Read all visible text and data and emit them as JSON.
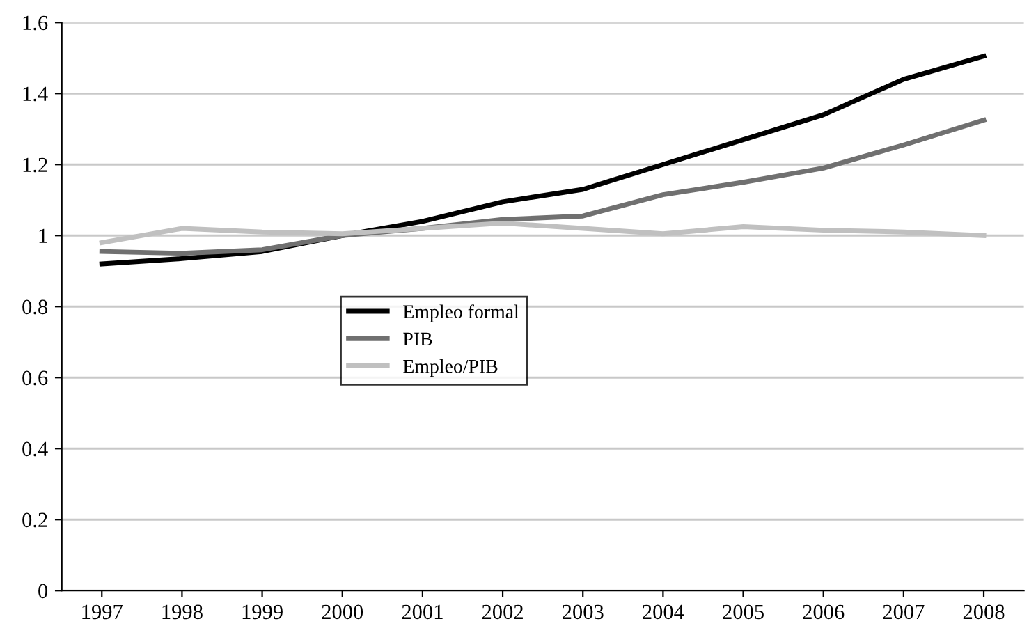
{
  "chart_data": {
    "type": "line",
    "categories": [
      "1997",
      "1998",
      "1999",
      "2000",
      "2001",
      "2002",
      "2003",
      "2004",
      "2005",
      "2006",
      "2007",
      "2008"
    ],
    "series": [
      {
        "name": "Empleo formal",
        "color": "#000000",
        "values": [
          0.92,
          0.935,
          0.955,
          1.0,
          1.04,
          1.095,
          1.13,
          1.2,
          1.27,
          1.34,
          1.44,
          1.505
        ]
      },
      {
        "name": "PIB",
        "color": "#707070",
        "values": [
          0.955,
          0.95,
          0.96,
          1.0,
          1.02,
          1.045,
          1.055,
          1.115,
          1.15,
          1.19,
          1.255,
          1.325
        ]
      },
      {
        "name": "Empleo/PIB",
        "color": "#c0c0c0",
        "values": [
          0.98,
          1.02,
          1.01,
          1.005,
          1.02,
          1.035,
          1.02,
          1.005,
          1.025,
          1.015,
          1.01,
          1.0
        ]
      }
    ],
    "ylim": [
      0,
      1.6
    ],
    "yticks": [
      0,
      0.2,
      0.4,
      0.6,
      0.8,
      1,
      1.2,
      1.4,
      1.6
    ],
    "grid": "y",
    "legend": "center left",
    "marker": "none",
    "line_style": "solid"
  }
}
